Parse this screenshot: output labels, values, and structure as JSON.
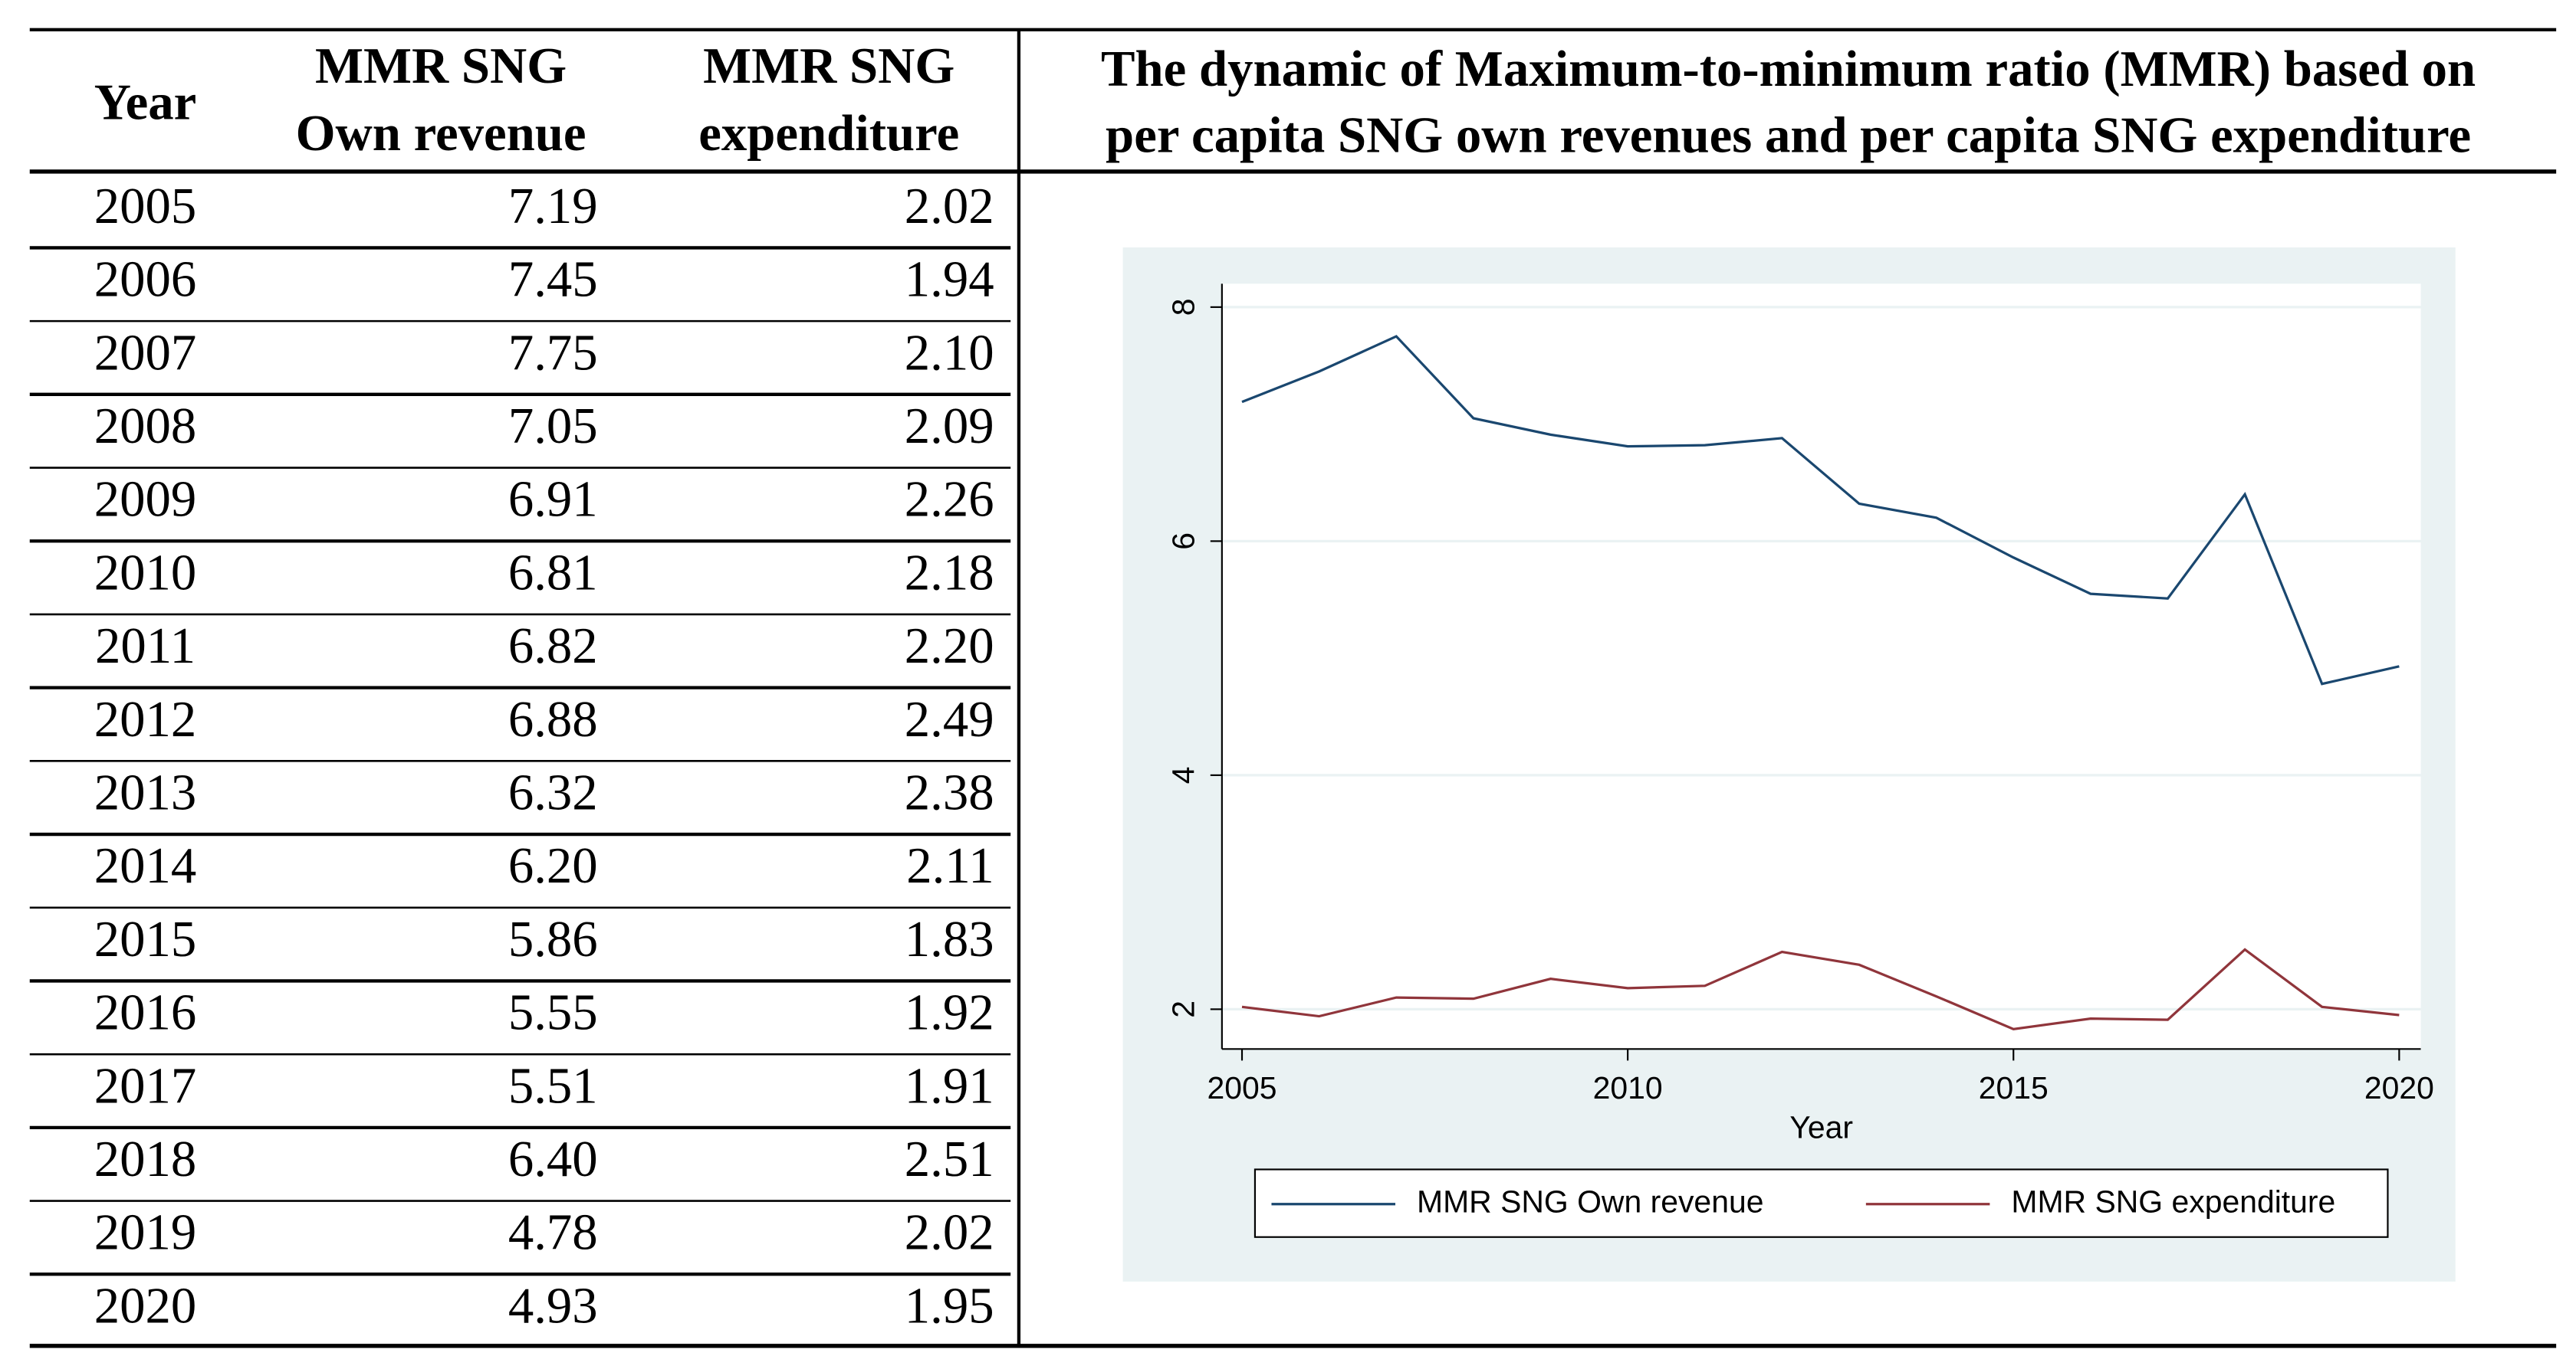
{
  "table": {
    "headers": [
      [
        "Year"
      ],
      [
        "MMR SNG",
        "Own revenue"
      ],
      [
        "MMR SNG",
        "expenditure"
      ]
    ],
    "rows": [
      [
        "2005",
        "7.19",
        "2.02"
      ],
      [
        "2006",
        "7.45",
        "1.94"
      ],
      [
        "2007",
        "7.75",
        "2.10"
      ],
      [
        "2008",
        "7.05",
        "2.09"
      ],
      [
        "2009",
        "6.91",
        "2.26"
      ],
      [
        "2010",
        "6.81",
        "2.18"
      ],
      [
        "2011",
        "6.82",
        "2.20"
      ],
      [
        "2012",
        "6.88",
        "2.49"
      ],
      [
        "2013",
        "6.32",
        "2.38"
      ],
      [
        "2014",
        "6.20",
        "2.11"
      ],
      [
        "2015",
        "5.86",
        "1.83"
      ],
      [
        "2016",
        "5.55",
        "1.92"
      ],
      [
        "2017",
        "5.51",
        "1.91"
      ],
      [
        "2018",
        "6.40",
        "2.51"
      ],
      [
        "2019",
        "4.78",
        "2.02"
      ],
      [
        "2020",
        "4.93",
        "1.95"
      ]
    ]
  },
  "chart_data": {
    "type": "line",
    "title": [
      "The dynamic of Maximum-to-minimum ratio (MMR) based on",
      "per capita SNG own revenues and per capita SNG expenditure"
    ],
    "x_label": "Year",
    "x": [
      2005,
      2006,
      2007,
      2008,
      2009,
      2010,
      2011,
      2012,
      2013,
      2014,
      2015,
      2016,
      2017,
      2018,
      2019,
      2020
    ],
    "series": [
      {
        "name": "MMR SNG Own revenue",
        "color": "#1a476f",
        "values": [
          7.19,
          7.45,
          7.75,
          7.05,
          6.91,
          6.81,
          6.82,
          6.88,
          6.32,
          6.2,
          5.86,
          5.55,
          5.51,
          6.4,
          4.78,
          4.93
        ]
      },
      {
        "name": "MMR SNG expenditure",
        "color": "#90353b",
        "values": [
          2.02,
          1.94,
          2.1,
          2.09,
          2.26,
          2.18,
          2.2,
          2.49,
          2.38,
          2.11,
          1.83,
          1.92,
          1.91,
          2.51,
          2.02,
          1.95
        ]
      }
    ],
    "xlim": [
      2004.74,
      2020.28
    ],
    "xticks": [
      2005,
      2010,
      2015,
      2020
    ],
    "ylim": [
      1.66,
      8.2
    ],
    "yticks": [
      2,
      4,
      6,
      8
    ],
    "grid": true,
    "legend": "bottom"
  }
}
